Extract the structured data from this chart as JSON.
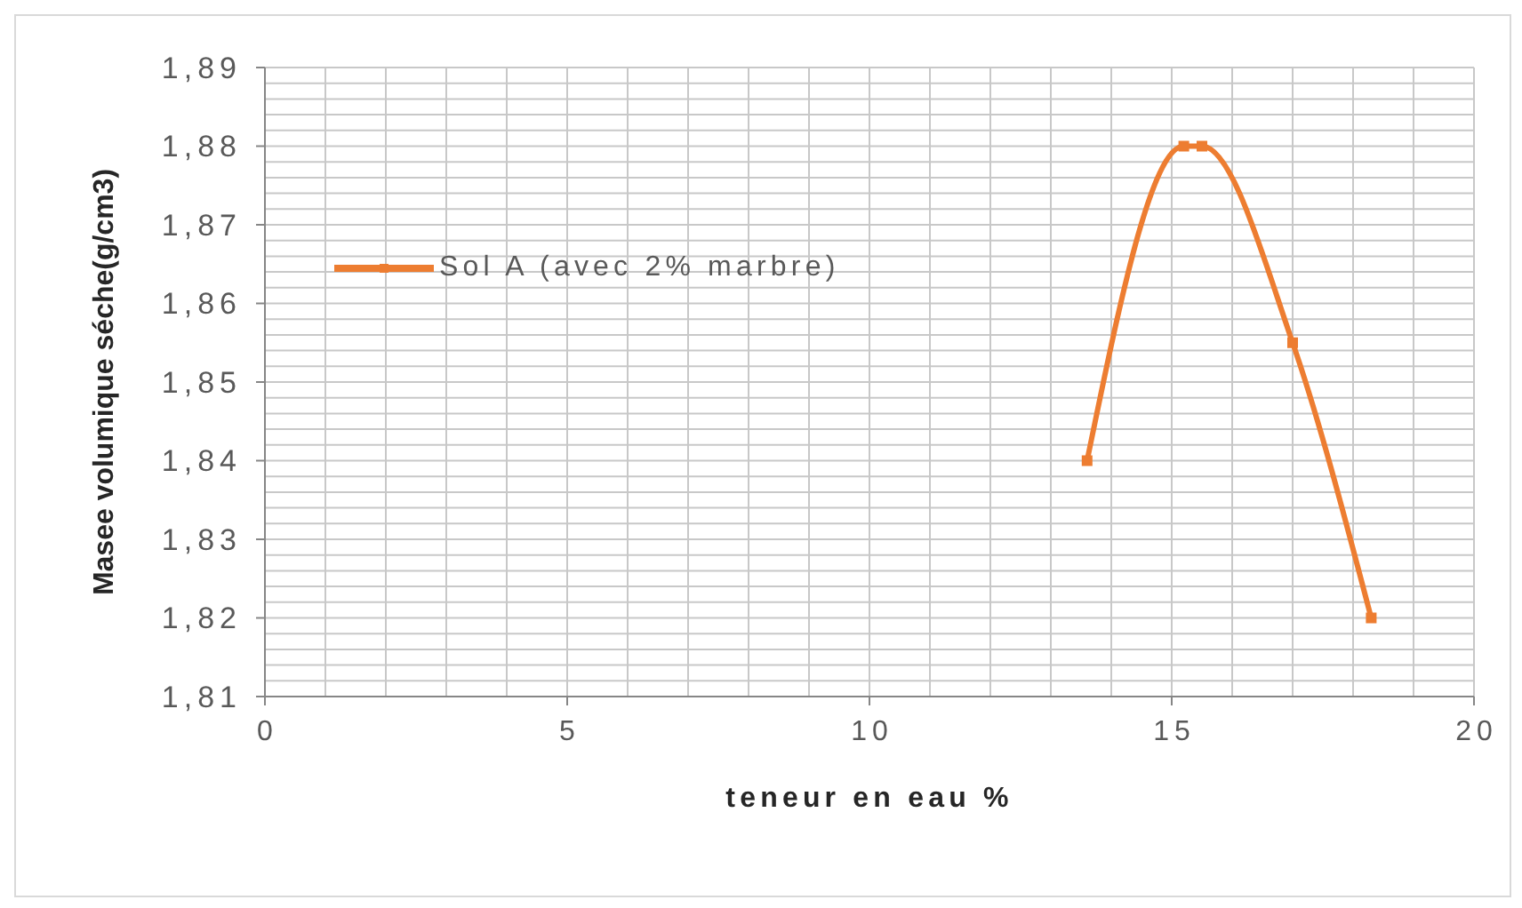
{
  "chart_data": {
    "type": "line",
    "xlabel": "teneur en eau %",
    "ylabel": "Masee volumique séche(g/cm3)",
    "x": [
      13.6,
      15.2,
      15.5,
      17,
      18.3
    ],
    "series": [
      {
        "name": "Sol A (avec 2% marbre)",
        "color": "#ed7d31",
        "values": [
          1.84,
          1.88,
          1.88,
          1.855,
          1.82
        ]
      }
    ],
    "xlim": [
      0,
      20
    ],
    "xticks": [
      0,
      {
        "value": 1,
        "label": null
      },
      {
        "value": 2,
        "label": null
      },
      {
        "value": 3,
        "label": null
      },
      {
        "value": 4,
        "label": null
      },
      5,
      {
        "value": 6,
        "label": null
      },
      {
        "value": 7,
        "label": null
      },
      {
        "value": 8,
        "label": null
      },
      {
        "value": 9,
        "label": null
      },
      10,
      {
        "value": 11,
        "label": null
      },
      {
        "value": 12,
        "label": null
      },
      {
        "value": 13,
        "label": null
      },
      {
        "value": 14,
        "label": null
      },
      15,
      {
        "value": 16,
        "label": null
      },
      {
        "value": 17,
        "label": null
      },
      {
        "value": 18,
        "label": null
      },
      {
        "value": 19,
        "label": null
      },
      20
    ],
    "ylim": [
      1.81,
      1.89
    ],
    "yticks": [
      {
        "value": 1.81,
        "label": "1,81"
      },
      {
        "value": 1.812,
        "label": null
      },
      {
        "value": 1.814,
        "label": null
      },
      {
        "value": 1.816,
        "label": null
      },
      {
        "value": 1.818,
        "label": null
      },
      {
        "value": 1.82,
        "label": "1,82"
      },
      {
        "value": 1.822,
        "label": null
      },
      {
        "value": 1.824,
        "label": null
      },
      {
        "value": 1.826,
        "label": null
      },
      {
        "value": 1.828,
        "label": null
      },
      {
        "value": 1.83,
        "label": "1,83"
      },
      {
        "value": 1.832,
        "label": null
      },
      {
        "value": 1.834,
        "label": null
      },
      {
        "value": 1.836,
        "label": null
      },
      {
        "value": 1.838,
        "label": null
      },
      {
        "value": 1.84,
        "label": "1,84"
      },
      {
        "value": 1.842,
        "label": null
      },
      {
        "value": 1.844,
        "label": null
      },
      {
        "value": 1.846,
        "label": null
      },
      {
        "value": 1.848,
        "label": null
      },
      {
        "value": 1.85,
        "label": "1,85"
      },
      {
        "value": 1.852,
        "label": null
      },
      {
        "value": 1.854,
        "label": null
      },
      {
        "value": 1.856,
        "label": null
      },
      {
        "value": 1.858,
        "label": null
      },
      {
        "value": 1.86,
        "label": "1,86"
      },
      {
        "value": 1.862,
        "label": null
      },
      {
        "value": 1.864,
        "label": null
      },
      {
        "value": 1.866,
        "label": null
      },
      {
        "value": 1.868,
        "label": null
      },
      {
        "value": 1.87,
        "label": "1,87"
      },
      {
        "value": 1.872,
        "label": null
      },
      {
        "value": 1.874,
        "label": null
      },
      {
        "value": 1.876,
        "label": null
      },
      {
        "value": 1.878,
        "label": null
      },
      {
        "value": 1.88,
        "label": "1,88"
      },
      {
        "value": 1.882,
        "label": null
      },
      {
        "value": 1.884,
        "label": null
      },
      {
        "value": 1.886,
        "label": null
      },
      {
        "value": 1.888,
        "label": null
      },
      {
        "value": 1.89,
        "label": "1,89"
      }
    ],
    "grid": true,
    "legend": "top left",
    "marker": "square",
    "line_style": "solid"
  }
}
